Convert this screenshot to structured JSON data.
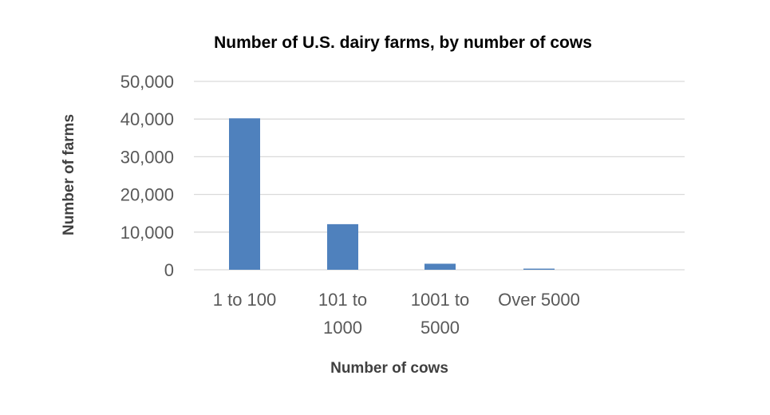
{
  "chart_data": {
    "type": "bar",
    "title": "Number of U.S. dairy farms, by number of cows",
    "xlabel": "Number of cows",
    "ylabel": "Number of farms",
    "categories": [
      [
        "1 to 100"
      ],
      [
        "101 to",
        "1000"
      ],
      [
        "1001 to",
        "5000"
      ],
      [
        "Over 5000"
      ]
    ],
    "values": [
      40200,
      12100,
      1600,
      300
    ],
    "ylim": [
      0,
      50000
    ],
    "yticks": [
      "0",
      "10,000",
      "20,000",
      "30,000",
      "40,000",
      "50,000"
    ],
    "ytick_values": [
      0,
      10000,
      20000,
      30000,
      40000,
      50000
    ],
    "grid": true,
    "legend": "none",
    "colors": {
      "bar": "#4f81bd",
      "grid": "#d9d9d9",
      "tick_text": "#595959",
      "axis_title": "#404040",
      "title": "#000000"
    }
  }
}
